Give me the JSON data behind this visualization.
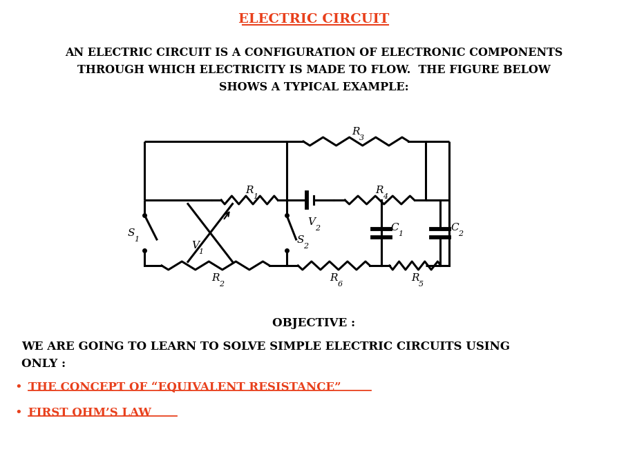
{
  "title": "ELECTRIC CIRCUIT",
  "title_color": "#E8401C",
  "body_text": "AN ELECTRIC CIRCUIT IS A CONFIGURATION OF ELECTRONIC COMPONENTS\nTHROUGH WHICH ELECTRICITY IS MADE TO FLOW.  THE FIGURE BELOW\nSHOWS A TYPICAL EXAMPLE:",
  "body_color": "#000000",
  "objective_title": "OBJECTIVE :",
  "objective_body": "WE ARE GOING TO LEARN TO SOLVE SIMPLE ELECTRIC CIRCUITS USING\nONLY :",
  "bullet1": "THE CONCEPT OF “EQUIVALENT RESISTANCE”",
  "bullet2": "FIRST OHM’S LAW",
  "bullet_color": "#E8401C",
  "text_color": "#000000",
  "circuit_color": "#000000",
  "bg_color": "#ffffff"
}
